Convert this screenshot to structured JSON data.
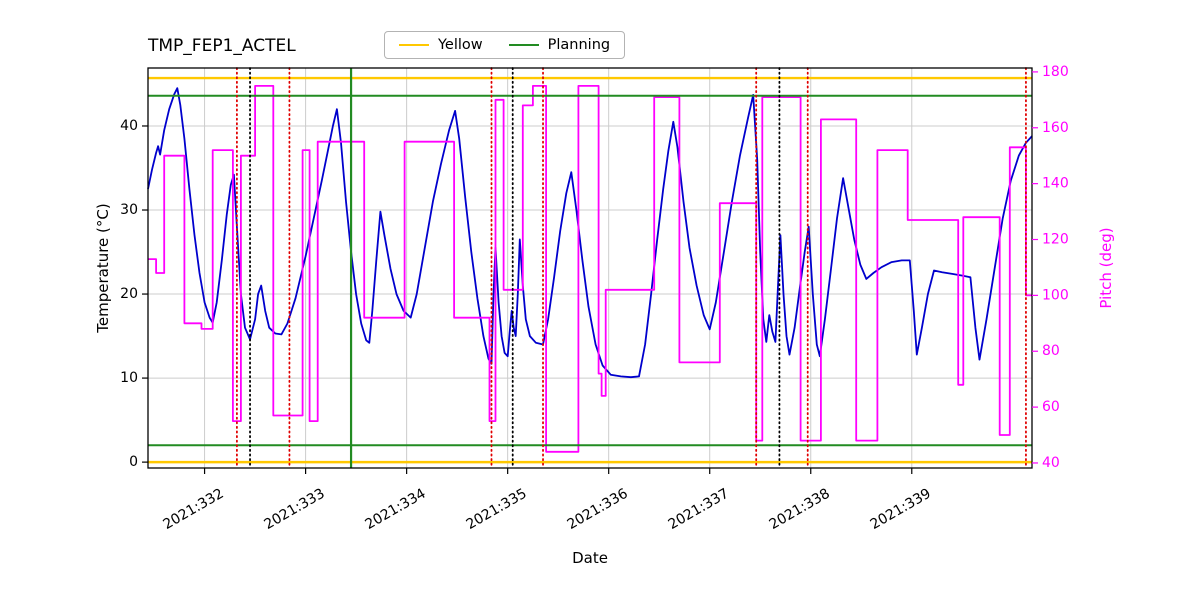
{
  "page": {
    "background": "#ffffff"
  },
  "chart_data": {
    "type": "line",
    "title": "TMP_FEP1_ACTEL",
    "xlabel": "Date",
    "ylabel_left": "Temperature (°C)",
    "ylabel_right": "Pitch (deg)",
    "xlim": [
      331.44,
      340.19
    ],
    "ylim_left": [
      -0.7,
      46.9
    ],
    "ylim_right": [
      38.2,
      181.4
    ],
    "grid": true,
    "colors": {
      "temperature": "#0000cd",
      "pitch": "#ff00ff",
      "yellow_limit": "#ffc800",
      "planning_limit": "#228b22",
      "red_event": "#e00000",
      "black_event": "#000000",
      "grid": "#cccccc",
      "frame": "#000000",
      "right_axis": "#ff00ff"
    },
    "x_ticks": [
      {
        "value": 332,
        "label": "2021:332"
      },
      {
        "value": 333,
        "label": "2021:333"
      },
      {
        "value": 334,
        "label": "2021:334"
      },
      {
        "value": 335,
        "label": "2021:335"
      },
      {
        "value": 336,
        "label": "2021:336"
      },
      {
        "value": 337,
        "label": "2021:337"
      },
      {
        "value": 338,
        "label": "2021:338"
      },
      {
        "value": 339,
        "label": "2021:339"
      }
    ],
    "y_ticks_left": [
      0,
      10,
      20,
      30,
      40
    ],
    "y_ticks_right": [
      40,
      60,
      80,
      100,
      120,
      140,
      160,
      180
    ],
    "legend": {
      "position": "top-center",
      "entries": [
        {
          "label": "Yellow",
          "color": "#ffc800"
        },
        {
          "label": "Planning",
          "color": "#228b22"
        }
      ]
    },
    "limit_lines": [
      {
        "name": "yellow-high",
        "value": 45.7,
        "color": "#ffc800",
        "width": 2.4
      },
      {
        "name": "yellow-low",
        "value": 0.0,
        "color": "#ffc800",
        "width": 2.4
      },
      {
        "name": "planning-high",
        "value": 43.6,
        "color": "#228b22",
        "width": 2.0
      },
      {
        "name": "planning-low",
        "value": 2.0,
        "color": "#228b22",
        "width": 2.0
      }
    ],
    "vlines": [
      {
        "x": 332.32,
        "color": "#e00000",
        "style": "dotted"
      },
      {
        "x": 332.45,
        "color": "#000000",
        "style": "dotted"
      },
      {
        "x": 332.84,
        "color": "#e00000",
        "style": "dotted"
      },
      {
        "x": 333.45,
        "color": "#228b22",
        "style": "solid"
      },
      {
        "x": 334.84,
        "color": "#e00000",
        "style": "dotted"
      },
      {
        "x": 335.05,
        "color": "#000000",
        "style": "dotted"
      },
      {
        "x": 335.35,
        "color": "#e00000",
        "style": "dotted"
      },
      {
        "x": 337.46,
        "color": "#e00000",
        "style": "dotted"
      },
      {
        "x": 337.69,
        "color": "#000000",
        "style": "dotted"
      },
      {
        "x": 337.97,
        "color": "#e00000",
        "style": "dotted"
      },
      {
        "x": 340.13,
        "color": "#e00000",
        "style": "dotted"
      }
    ],
    "series": [
      {
        "name": "temperature",
        "axis": "left",
        "color": "#0000cd",
        "width": 1.8,
        "style": "line",
        "points": [
          [
            331.44,
            32.5
          ],
          [
            331.48,
            34.8
          ],
          [
            331.52,
            36.8
          ],
          [
            331.54,
            37.6
          ],
          [
            331.56,
            36.6
          ],
          [
            331.6,
            39.5
          ],
          [
            331.65,
            42.0
          ],
          [
            331.7,
            43.8
          ],
          [
            331.73,
            44.5
          ],
          [
            331.76,
            42.5
          ],
          [
            331.8,
            38.5
          ],
          [
            331.85,
            32.5
          ],
          [
            331.9,
            27.0
          ],
          [
            331.95,
            22.5
          ],
          [
            332.0,
            19.0
          ],
          [
            332.05,
            17.2
          ],
          [
            332.08,
            16.6
          ],
          [
            332.12,
            19.0
          ],
          [
            332.17,
            24.0
          ],
          [
            332.22,
            29.5
          ],
          [
            332.26,
            33.0
          ],
          [
            332.29,
            34.2
          ],
          [
            332.32,
            28.0
          ],
          [
            332.36,
            20.0
          ],
          [
            332.4,
            16.0
          ],
          [
            332.45,
            14.6
          ],
          [
            332.5,
            17.0
          ],
          [
            332.53,
            20.0
          ],
          [
            332.56,
            21.0
          ],
          [
            332.6,
            18.0
          ],
          [
            332.64,
            16.0
          ],
          [
            332.7,
            15.3
          ],
          [
            332.76,
            15.2
          ],
          [
            332.82,
            16.5
          ],
          [
            332.9,
            19.5
          ],
          [
            333.0,
            24.5
          ],
          [
            333.08,
            29.0
          ],
          [
            333.16,
            33.5
          ],
          [
            333.22,
            37.0
          ],
          [
            333.27,
            40.0
          ],
          [
            333.31,
            42.0
          ],
          [
            333.35,
            38.0
          ],
          [
            333.4,
            31.0
          ],
          [
            333.45,
            25.0
          ],
          [
            333.5,
            20.0
          ],
          [
            333.55,
            16.5
          ],
          [
            333.6,
            14.5
          ],
          [
            333.63,
            14.2
          ],
          [
            333.66,
            18.0
          ],
          [
            333.7,
            24.0
          ],
          [
            333.74,
            29.8
          ],
          [
            333.78,
            27.0
          ],
          [
            333.84,
            23.0
          ],
          [
            333.9,
            20.0
          ],
          [
            333.97,
            18.0
          ],
          [
            334.04,
            17.2
          ],
          [
            334.1,
            20.0
          ],
          [
            334.18,
            25.5
          ],
          [
            334.26,
            31.0
          ],
          [
            334.34,
            35.5
          ],
          [
            334.42,
            39.5
          ],
          [
            334.48,
            41.8
          ],
          [
            334.52,
            38.5
          ],
          [
            334.58,
            31.5
          ],
          [
            334.64,
            25.0
          ],
          [
            334.7,
            19.5
          ],
          [
            334.76,
            15.0
          ],
          [
            334.81,
            12.3
          ],
          [
            334.84,
            11.7
          ],
          [
            334.86,
            20.0
          ],
          [
            334.88,
            25.5
          ],
          [
            334.91,
            19.0
          ],
          [
            334.94,
            15.0
          ],
          [
            334.97,
            13.0
          ],
          [
            335.0,
            12.6
          ],
          [
            335.02,
            15.5
          ],
          [
            335.04,
            18.0
          ],
          [
            335.06,
            16.0
          ],
          [
            335.08,
            15.0
          ],
          [
            335.1,
            20.0
          ],
          [
            335.12,
            26.5
          ],
          [
            335.15,
            21.0
          ],
          [
            335.18,
            17.0
          ],
          [
            335.22,
            15.0
          ],
          [
            335.28,
            14.2
          ],
          [
            335.35,
            14.0
          ],
          [
            335.4,
            17.0
          ],
          [
            335.46,
            22.0
          ],
          [
            335.52,
            27.5
          ],
          [
            335.58,
            32.0
          ],
          [
            335.63,
            34.5
          ],
          [
            335.68,
            30.0
          ],
          [
            335.74,
            24.0
          ],
          [
            335.8,
            18.5
          ],
          [
            335.87,
            14.0
          ],
          [
            335.94,
            11.5
          ],
          [
            336.02,
            10.4
          ],
          [
            336.12,
            10.2
          ],
          [
            336.22,
            10.1
          ],
          [
            336.3,
            10.2
          ],
          [
            336.36,
            14.0
          ],
          [
            336.42,
            20.0
          ],
          [
            336.48,
            26.5
          ],
          [
            336.54,
            32.5
          ],
          [
            336.59,
            37.0
          ],
          [
            336.64,
            40.5
          ],
          [
            336.68,
            37.5
          ],
          [
            336.74,
            31.0
          ],
          [
            336.8,
            25.5
          ],
          [
            336.87,
            21.0
          ],
          [
            336.94,
            17.5
          ],
          [
            337.0,
            15.8
          ],
          [
            337.06,
            19.0
          ],
          [
            337.14,
            25.0
          ],
          [
            337.22,
            31.0
          ],
          [
            337.3,
            36.5
          ],
          [
            337.38,
            41.0
          ],
          [
            337.43,
            43.7
          ],
          [
            337.47,
            36.0
          ],
          [
            337.5,
            25.0
          ],
          [
            337.53,
            17.0
          ],
          [
            337.56,
            14.3
          ],
          [
            337.59,
            17.5
          ],
          [
            337.62,
            15.5
          ],
          [
            337.65,
            14.3
          ],
          [
            337.68,
            22.0
          ],
          [
            337.7,
            27.0
          ],
          [
            337.73,
            20.0
          ],
          [
            337.76,
            15.0
          ],
          [
            337.79,
            12.8
          ],
          [
            337.84,
            16.0
          ],
          [
            337.89,
            20.5
          ],
          [
            337.94,
            25.0
          ],
          [
            337.98,
            28.0
          ],
          [
            338.02,
            20.0
          ],
          [
            338.06,
            14.0
          ],
          [
            338.09,
            12.6
          ],
          [
            338.14,
            17.0
          ],
          [
            338.2,
            23.0
          ],
          [
            338.26,
            29.0
          ],
          [
            338.32,
            33.8
          ],
          [
            338.37,
            30.5
          ],
          [
            338.43,
            26.5
          ],
          [
            338.49,
            23.5
          ],
          [
            338.55,
            21.8
          ],
          [
            338.62,
            22.5
          ],
          [
            338.7,
            23.2
          ],
          [
            338.8,
            23.8
          ],
          [
            338.9,
            24.0
          ],
          [
            338.98,
            24.0
          ],
          [
            339.02,
            18.0
          ],
          [
            339.05,
            12.8
          ],
          [
            339.1,
            16.0
          ],
          [
            339.16,
            20.0
          ],
          [
            339.22,
            22.8
          ],
          [
            339.3,
            22.6
          ],
          [
            339.4,
            22.4
          ],
          [
            339.5,
            22.2
          ],
          [
            339.58,
            22.0
          ],
          [
            339.63,
            16.0
          ],
          [
            339.67,
            12.2
          ],
          [
            339.74,
            17.0
          ],
          [
            339.82,
            23.0
          ],
          [
            339.9,
            29.0
          ],
          [
            339.98,
            33.5
          ],
          [
            340.06,
            36.5
          ],
          [
            340.13,
            38.0
          ],
          [
            340.19,
            38.8
          ]
        ]
      },
      {
        "name": "pitch",
        "axis": "right",
        "color": "#ff00ff",
        "width": 1.8,
        "style": "step",
        "points": [
          [
            331.44,
            113
          ],
          [
            331.52,
            108
          ],
          [
            331.6,
            150
          ],
          [
            331.8,
            90
          ],
          [
            331.97,
            88
          ],
          [
            332.08,
            152
          ],
          [
            332.28,
            55
          ],
          [
            332.36,
            150
          ],
          [
            332.5,
            175
          ],
          [
            332.68,
            57
          ],
          [
            332.97,
            152
          ],
          [
            333.04,
            55
          ],
          [
            333.12,
            155
          ],
          [
            333.58,
            92
          ],
          [
            333.98,
            155
          ],
          [
            334.47,
            92
          ],
          [
            334.82,
            55
          ],
          [
            334.88,
            170
          ],
          [
            334.96,
            102
          ],
          [
            335.15,
            168
          ],
          [
            335.25,
            175
          ],
          [
            335.38,
            44
          ],
          [
            335.7,
            175
          ],
          [
            335.9,
            72
          ],
          [
            335.93,
            64
          ],
          [
            335.97,
            102
          ],
          [
            336.45,
            171
          ],
          [
            336.7,
            76
          ],
          [
            337.1,
            133
          ],
          [
            337.46,
            48
          ],
          [
            337.52,
            171
          ],
          [
            337.9,
            48
          ],
          [
            338.1,
            163
          ],
          [
            338.45,
            48
          ],
          [
            338.66,
            152
          ],
          [
            338.96,
            127
          ],
          [
            339.46,
            68
          ],
          [
            339.51,
            128
          ],
          [
            339.87,
            50
          ],
          [
            339.97,
            153
          ],
          [
            340.13,
            100
          ]
        ]
      }
    ]
  }
}
